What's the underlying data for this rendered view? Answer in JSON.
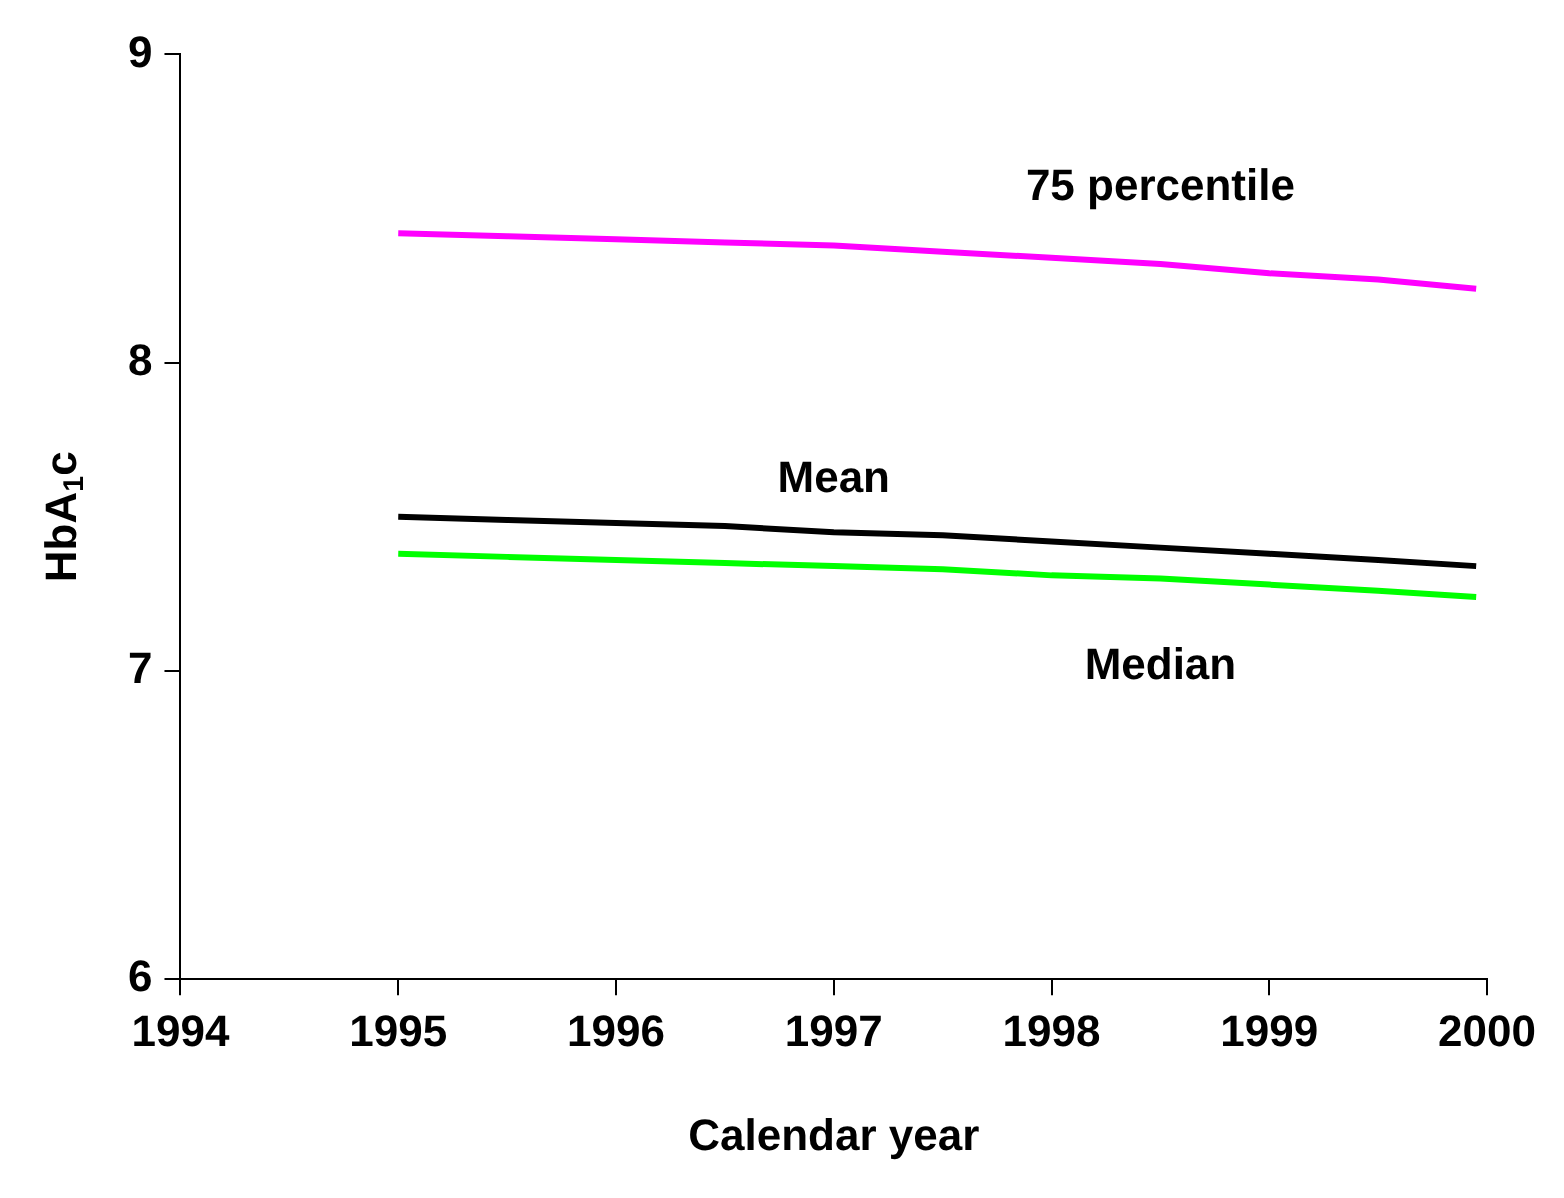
{
  "chart_data": {
    "type": "line",
    "xlabel": "Calendar year",
    "ylabel": "HbA$_{1}$c",
    "xlim": [
      1994,
      2000
    ],
    "xticks": [
      1994,
      1995,
      1996,
      1997,
      1998,
      1999,
      2000
    ],
    "ylim": [
      6,
      9
    ],
    "yticks": [
      6,
      7,
      8,
      9
    ],
    "grid": false,
    "legend": false,
    "marker": "none",
    "line_style": "solid",
    "series": [
      {
        "name": "75 percentile",
        "color": "#ff00ff",
        "x": [
          1995,
          1995.5,
          1996,
          1996.5,
          1997,
          1997.5,
          1998,
          1998.5,
          1999,
          1999.5,
          1999.95
        ],
        "values": [
          8.42,
          8.41,
          8.4,
          8.39,
          8.38,
          8.36,
          8.34,
          8.32,
          8.29,
          8.27,
          8.24
        ]
      },
      {
        "name": "Mean",
        "color": "#000000",
        "x": [
          1995,
          1995.5,
          1996,
          1996.5,
          1997,
          1997.5,
          1998,
          1998.5,
          1999,
          1999.5,
          1999.95
        ],
        "values": [
          7.5,
          7.49,
          7.48,
          7.47,
          7.45,
          7.44,
          7.42,
          7.4,
          7.38,
          7.36,
          7.34
        ]
      },
      {
        "name": "Median",
        "color": "#00ff00",
        "x": [
          1995,
          1995.5,
          1996,
          1996.5,
          1997,
          1997.5,
          1998,
          1998.5,
          1999,
          1999.5,
          1999.95
        ],
        "values": [
          7.38,
          7.37,
          7.36,
          7.35,
          7.34,
          7.33,
          7.31,
          7.3,
          7.28,
          7.26,
          7.24
        ]
      }
    ]
  }
}
